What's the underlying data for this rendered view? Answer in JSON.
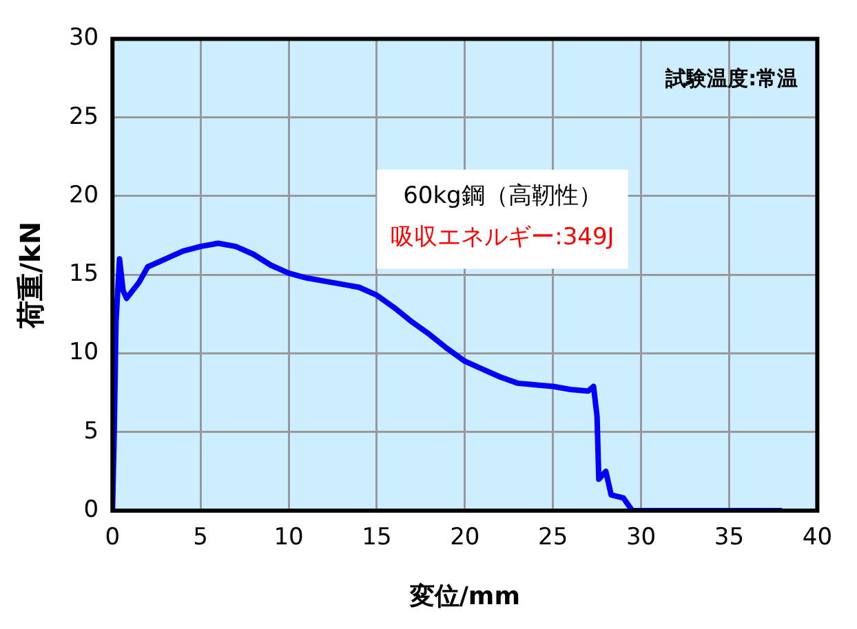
{
  "chart_data": {
    "type": "line",
    "xlabel": "変位/mm",
    "ylabel": "荷重/kN",
    "xlim": [
      0,
      40
    ],
    "ylim": [
      0,
      30
    ],
    "xticks": [
      0,
      5,
      10,
      15,
      20,
      25,
      30,
      35,
      40
    ],
    "yticks": [
      0,
      5,
      10,
      15,
      20,
      25,
      30
    ],
    "grid": true,
    "legend": false,
    "marker": "none",
    "line_style": "solid",
    "annotations": [
      "試験温度:常温",
      "60kg鋼（高靭性）",
      "吸収エネルギー:349J"
    ],
    "series": [
      {
        "color": "#0000ff",
        "x": [
          0,
          0.1,
          0.2,
          0.4,
          0.6,
          0.8,
          1.5,
          2,
          3,
          4,
          5,
          6,
          7,
          8,
          9,
          10,
          11,
          12,
          13,
          14,
          15,
          16,
          17,
          18,
          19,
          20,
          21,
          22,
          23,
          24,
          25,
          26,
          27,
          27.3,
          27.5,
          27.6,
          28,
          28.3,
          29,
          29.5,
          30,
          38
        ],
        "values": [
          0,
          5,
          12,
          16,
          14,
          13.5,
          14.5,
          15.5,
          16,
          16.5,
          16.8,
          17,
          16.8,
          16.3,
          15.6,
          15.1,
          14.8,
          14.6,
          14.4,
          14.2,
          13.7,
          12.9,
          12,
          11.2,
          10.3,
          9.5,
          9,
          8.5,
          8.1,
          8,
          7.9,
          7.7,
          7.6,
          7.9,
          6,
          2,
          2.5,
          1,
          0.8,
          0,
          0,
          0
        ]
      }
    ]
  }
}
